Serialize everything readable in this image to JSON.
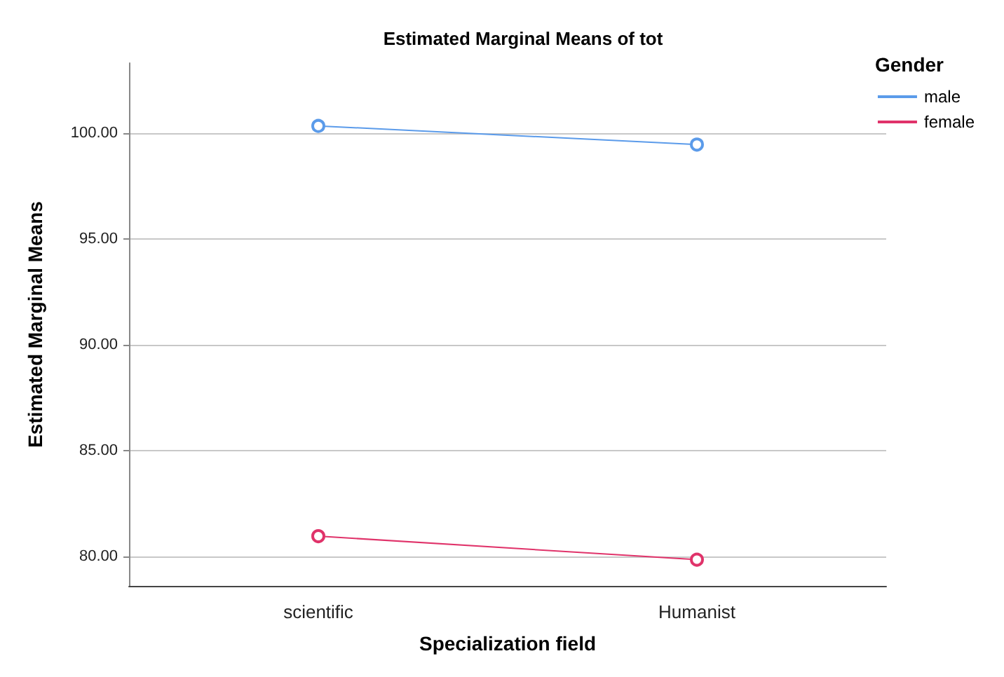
{
  "chart_data": {
    "type": "line",
    "title": "Estimated Marginal Means of tot",
    "xlabel": "Specialization field",
    "ylabel": "Estimated Marginal Means",
    "legend_title": "Gender",
    "categories": [
      "scientific",
      "Humanist"
    ],
    "series": [
      {
        "name": "male",
        "color": "#5b9bea",
        "values": [
          100.33,
          99.45
        ]
      },
      {
        "name": "female",
        "color": "#e0336a",
        "values": [
          80.95,
          79.84
        ]
      }
    ],
    "ylim": [
      78.6,
      103.3
    ],
    "yticks": [
      {
        "value": 80,
        "label": "80.00"
      },
      {
        "value": 85,
        "label": "85.00"
      },
      {
        "value": 90,
        "label": "90.00"
      },
      {
        "value": 95,
        "label": "95.00"
      },
      {
        "value": 100,
        "label": "100.00"
      }
    ],
    "grid": "y",
    "legend": "top right",
    "marker": "circle",
    "line_style": "solid"
  }
}
